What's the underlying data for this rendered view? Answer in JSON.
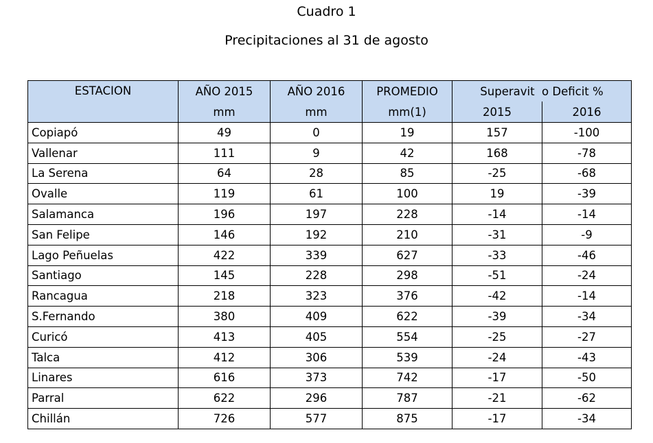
{
  "title": "Cuadro 1",
  "subtitle": "Precipitaciones al 31 de agosto",
  "table": {
    "headers": {
      "station": "ESTACION",
      "year2015": "AÑO 2015",
      "year2015_unit": "mm",
      "year2016": "AÑO 2016",
      "year2016_unit": "mm",
      "average": "PROMEDIO",
      "average_unit": "mm(1)",
      "surplus": "Superavit  o Deficit %",
      "surplus_2015": "2015",
      "surplus_2016": "2016"
    },
    "rows": [
      {
        "station": "Copiapó",
        "y2015": "49",
        "y2016": "0",
        "avg": "19",
        "d2015": "157",
        "d2016": "-100"
      },
      {
        "station": "Vallenar",
        "y2015": "111",
        "y2016": "9",
        "avg": "42",
        "d2015": "168",
        "d2016": "-78"
      },
      {
        "station": "La Serena",
        "y2015": "64",
        "y2016": "28",
        "avg": "85",
        "d2015": "-25",
        "d2016": "-68"
      },
      {
        "station": "Ovalle",
        "y2015": "119",
        "y2016": "61",
        "avg": "100",
        "d2015": "19",
        "d2016": "-39"
      },
      {
        "station": "Salamanca",
        "y2015": "196",
        "y2016": "197",
        "avg": "228",
        "d2015": "-14",
        "d2016": "-14"
      },
      {
        "station": "San Felipe",
        "y2015": "146",
        "y2016": "192",
        "avg": "210",
        "d2015": "-31",
        "d2016": "-9"
      },
      {
        "station": "Lago Peñuelas",
        "y2015": "422",
        "y2016": "339",
        "avg": "627",
        "d2015": "-33",
        "d2016": "-46"
      },
      {
        "station": "Santiago",
        "y2015": "145",
        "y2016": "228",
        "avg": "298",
        "d2015": "-51",
        "d2016": "-24"
      },
      {
        "station": "Rancagua",
        "y2015": "218",
        "y2016": "323",
        "avg": "376",
        "d2015": "-42",
        "d2016": "-14"
      },
      {
        "station": "S.Fernando",
        "y2015": "380",
        "y2016": "409",
        "avg": "622",
        "d2015": "-39",
        "d2016": "-34"
      },
      {
        "station": "Curicó",
        "y2015": "413",
        "y2016": "405",
        "avg": "554",
        "d2015": "-25",
        "d2016": "-27"
      },
      {
        "station": "Talca",
        "y2015": "412",
        "y2016": "306",
        "avg": "539",
        "d2015": "-24",
        "d2016": "-43"
      },
      {
        "station": "Linares",
        "y2015": "616",
        "y2016": "373",
        "avg": "742",
        "d2015": "-17",
        "d2016": "-50"
      },
      {
        "station": "Parral",
        "y2015": "622",
        "y2016": "296",
        "avg": "787",
        "d2015": "-21",
        "d2016": "-62"
      },
      {
        "station": "Chillán",
        "y2015": "726",
        "y2016": "577",
        "avg": "875",
        "d2015": "-17",
        "d2016": "-34"
      }
    ]
  },
  "colors": {
    "header_background": "#c6d9f1",
    "border": "#000000"
  }
}
